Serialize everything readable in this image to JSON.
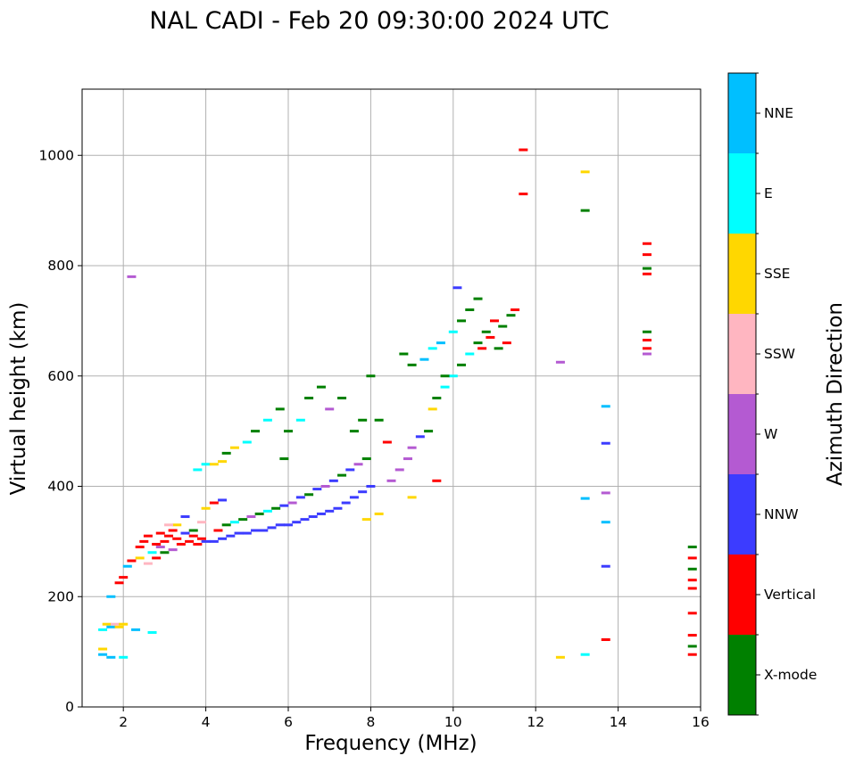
{
  "chart_data": {
    "type": "scatter",
    "title": "NAL CADI - Feb 20 09:30:00 2024 UTC",
    "xlabel": "Frequency (MHz)",
    "ylabel": "Virtual height (km)",
    "xlim": [
      1,
      16
    ],
    "ylim": [
      0,
      1120
    ],
    "xticks": [
      2,
      4,
      6,
      8,
      10,
      12,
      14,
      16
    ],
    "yticks": [
      0,
      200,
      400,
      600,
      800,
      1000
    ],
    "grid": true,
    "colorbar": {
      "label": "Azimuth Direction",
      "categories": [
        {
          "name": "X-mode",
          "color": "#008000"
        },
        {
          "name": "Vertical",
          "color": "#ff0000"
        },
        {
          "name": "NNW",
          "color": "#3c3cff"
        },
        {
          "name": "W",
          "color": "#b45ad2"
        },
        {
          "name": "SSW",
          "color": "#ffb6c1"
        },
        {
          "name": "SSE",
          "color": "#ffd700"
        },
        {
          "name": "E",
          "color": "#00ffff"
        },
        {
          "name": "NNE",
          "color": "#00bfff"
        }
      ]
    },
    "points": [
      [
        1.5,
        95,
        "NNE"
      ],
      [
        1.5,
        105,
        "SSE"
      ],
      [
        1.5,
        140,
        "E"
      ],
      [
        1.6,
        150,
        "SSE"
      ],
      [
        1.7,
        145,
        "NNE"
      ],
      [
        1.8,
        150,
        "SSW"
      ],
      [
        1.9,
        145,
        "SSE"
      ],
      [
        2.0,
        150,
        "SSE"
      ],
      [
        2.3,
        140,
        "NNE"
      ],
      [
        2.7,
        135,
        "E"
      ],
      [
        2.0,
        90,
        "E"
      ],
      [
        1.7,
        90,
        "NNE"
      ],
      [
        2.2,
        780,
        "W"
      ],
      [
        1.7,
        200,
        "NNE"
      ],
      [
        1.9,
        225,
        "Vertical"
      ],
      [
        2.0,
        235,
        "Vertical"
      ],
      [
        2.1,
        255,
        "NNE"
      ],
      [
        2.2,
        265,
        "Vertical"
      ],
      [
        2.4,
        270,
        "SSE"
      ],
      [
        2.4,
        290,
        "Vertical"
      ],
      [
        2.5,
        300,
        "Vertical"
      ],
      [
        2.6,
        310,
        "Vertical"
      ],
      [
        2.7,
        280,
        "E"
      ],
      [
        2.8,
        295,
        "Vertical"
      ],
      [
        2.9,
        290,
        "W"
      ],
      [
        3.0,
        300,
        "Vertical"
      ],
      [
        3.1,
        310,
        "Vertical"
      ],
      [
        3.2,
        320,
        "Vertical"
      ],
      [
        3.3,
        305,
        "Vertical"
      ],
      [
        3.4,
        295,
        "Vertical"
      ],
      [
        3.5,
        315,
        "NNW"
      ],
      [
        3.6,
        300,
        "Vertical"
      ],
      [
        3.7,
        310,
        "Vertical"
      ],
      [
        3.8,
        295,
        "Vertical"
      ],
      [
        3.9,
        305,
        "Vertical"
      ],
      [
        4.0,
        300,
        "NNW"
      ],
      [
        2.6,
        260,
        "SSW"
      ],
      [
        2.8,
        270,
        "Vertical"
      ],
      [
        3.0,
        280,
        "X-mode"
      ],
      [
        3.2,
        285,
        "W"
      ],
      [
        3.3,
        330,
        "SSE"
      ],
      [
        3.5,
        345,
        "NNW"
      ],
      [
        3.7,
        320,
        "X-mode"
      ],
      [
        3.9,
        335,
        "SSW"
      ],
      [
        2.9,
        315,
        "Vertical"
      ],
      [
        3.1,
        330,
        "SSW"
      ],
      [
        4.2,
        300,
        "NNW"
      ],
      [
        4.4,
        305,
        "NNW"
      ],
      [
        4.6,
        310,
        "NNW"
      ],
      [
        4.8,
        315,
        "NNW"
      ],
      [
        5.0,
        315,
        "NNW"
      ],
      [
        5.2,
        320,
        "NNW"
      ],
      [
        5.4,
        320,
        "NNW"
      ],
      [
        5.6,
        325,
        "NNW"
      ],
      [
        5.8,
        330,
        "NNW"
      ],
      [
        6.0,
        330,
        "NNW"
      ],
      [
        6.2,
        335,
        "NNW"
      ],
      [
        6.4,
        340,
        "NNW"
      ],
      [
        6.6,
        345,
        "NNW"
      ],
      [
        6.8,
        350,
        "NNW"
      ],
      [
        7.0,
        355,
        "NNW"
      ],
      [
        7.2,
        360,
        "NNW"
      ],
      [
        7.4,
        370,
        "NNW"
      ],
      [
        7.6,
        380,
        "NNW"
      ],
      [
        7.8,
        390,
        "NNW"
      ],
      [
        8.0,
        400,
        "NNW"
      ],
      [
        4.3,
        320,
        "Vertical"
      ],
      [
        4.5,
        330,
        "X-mode"
      ],
      [
        4.7,
        335,
        "E"
      ],
      [
        4.9,
        340,
        "X-mode"
      ],
      [
        5.1,
        345,
        "W"
      ],
      [
        5.3,
        350,
        "X-mode"
      ],
      [
        5.5,
        355,
        "E"
      ],
      [
        5.7,
        360,
        "X-mode"
      ],
      [
        5.9,
        365,
        "NNW"
      ],
      [
        6.1,
        370,
        "W"
      ],
      [
        6.3,
        380,
        "NNW"
      ],
      [
        6.5,
        385,
        "X-mode"
      ],
      [
        6.7,
        395,
        "NNW"
      ],
      [
        6.9,
        400,
        "W"
      ],
      [
        7.1,
        410,
        "NNW"
      ],
      [
        7.3,
        420,
        "X-mode"
      ],
      [
        7.5,
        430,
        "NNW"
      ],
      [
        7.7,
        440,
        "W"
      ],
      [
        7.9,
        450,
        "X-mode"
      ],
      [
        4.0,
        360,
        "SSE"
      ],
      [
        4.2,
        370,
        "Vertical"
      ],
      [
        4.4,
        375,
        "NNW"
      ],
      [
        3.8,
        430,
        "E"
      ],
      [
        4.0,
        440,
        "E"
      ],
      [
        4.2,
        440,
        "SSE"
      ],
      [
        4.4,
        445,
        "SSE"
      ],
      [
        4.5,
        460,
        "X-mode"
      ],
      [
        4.7,
        470,
        "SSE"
      ],
      [
        5.0,
        480,
        "E"
      ],
      [
        5.2,
        500,
        "X-mode"
      ],
      [
        5.5,
        520,
        "E"
      ],
      [
        5.8,
        540,
        "X-mode"
      ],
      [
        6.0,
        500,
        "X-mode"
      ],
      [
        6.3,
        520,
        "E"
      ],
      [
        6.5,
        560,
        "X-mode"
      ],
      [
        6.8,
        580,
        "X-mode"
      ],
      [
        7.0,
        540,
        "W"
      ],
      [
        7.3,
        560,
        "X-mode"
      ],
      [
        7.6,
        500,
        "X-mode"
      ],
      [
        7.8,
        520,
        "X-mode"
      ],
      [
        5.9,
        450,
        "X-mode"
      ],
      [
        8.2,
        520,
        "X-mode"
      ],
      [
        8.4,
        480,
        "Vertical"
      ],
      [
        8.5,
        410,
        "W"
      ],
      [
        8.7,
        430,
        "W"
      ],
      [
        8.9,
        450,
        "W"
      ],
      [
        9.0,
        470,
        "W"
      ],
      [
        9.2,
        490,
        "NNW"
      ],
      [
        9.4,
        500,
        "X-mode"
      ],
      [
        9.5,
        540,
        "SSE"
      ],
      [
        9.6,
        560,
        "X-mode"
      ],
      [
        9.8,
        580,
        "E"
      ],
      [
        10.0,
        600,
        "E"
      ],
      [
        10.2,
        620,
        "X-mode"
      ],
      [
        10.4,
        640,
        "E"
      ],
      [
        10.6,
        660,
        "X-mode"
      ],
      [
        10.8,
        680,
        "X-mode"
      ],
      [
        11.0,
        700,
        "Vertical"
      ],
      [
        11.2,
        690,
        "X-mode"
      ],
      [
        11.4,
        710,
        "X-mode"
      ],
      [
        11.5,
        720,
        "Vertical"
      ],
      [
        8.8,
        640,
        "X-mode"
      ],
      [
        9.0,
        620,
        "X-mode"
      ],
      [
        9.3,
        630,
        "NNE"
      ],
      [
        9.5,
        650,
        "E"
      ],
      [
        9.7,
        660,
        "NNE"
      ],
      [
        10.0,
        680,
        "E"
      ],
      [
        10.2,
        700,
        "X-mode"
      ],
      [
        10.4,
        720,
        "X-mode"
      ],
      [
        10.1,
        760,
        "NNW"
      ],
      [
        10.6,
        740,
        "X-mode"
      ],
      [
        9.0,
        380,
        "SSE"
      ],
      [
        9.6,
        410,
        "Vertical"
      ],
      [
        8.2,
        350,
        "SSE"
      ],
      [
        7.9,
        340,
        "SSE"
      ],
      [
        9.8,
        600,
        "X-mode"
      ],
      [
        10.7,
        650,
        "Vertical"
      ],
      [
        10.9,
        670,
        "Vertical"
      ],
      [
        11.1,
        650,
        "X-mode"
      ],
      [
        11.3,
        660,
        "Vertical"
      ],
      [
        8.0,
        600,
        "X-mode"
      ],
      [
        11.7,
        1010,
        "Vertical"
      ],
      [
        11.7,
        930,
        "Vertical"
      ],
      [
        12.6,
        625,
        "W"
      ],
      [
        12.6,
        90,
        "SSE"
      ],
      [
        13.2,
        970,
        "SSE"
      ],
      [
        13.2,
        900,
        "X-mode"
      ],
      [
        13.2,
        95,
        "E"
      ],
      [
        13.7,
        545,
        "NNE"
      ],
      [
        13.7,
        478,
        "NNW"
      ],
      [
        13.7,
        388,
        "W"
      ],
      [
        13.7,
        335,
        "NNE"
      ],
      [
        13.7,
        255,
        "NNW"
      ],
      [
        13.7,
        122,
        "Vertical"
      ],
      [
        13.2,
        378,
        "NNE"
      ],
      [
        14.7,
        840,
        "Vertical"
      ],
      [
        14.7,
        820,
        "Vertical"
      ],
      [
        14.7,
        795,
        "X-mode"
      ],
      [
        14.7,
        785,
        "Vertical"
      ],
      [
        14.7,
        680,
        "X-mode"
      ],
      [
        14.7,
        665,
        "Vertical"
      ],
      [
        14.7,
        650,
        "Vertical"
      ],
      [
        14.7,
        640,
        "W"
      ],
      [
        15.8,
        290,
        "X-mode"
      ],
      [
        15.8,
        270,
        "Vertical"
      ],
      [
        15.8,
        250,
        "X-mode"
      ],
      [
        15.8,
        230,
        "Vertical"
      ],
      [
        15.8,
        215,
        "Vertical"
      ],
      [
        15.8,
        170,
        "Vertical"
      ],
      [
        15.8,
        130,
        "Vertical"
      ],
      [
        15.8,
        110,
        "X-mode"
      ],
      [
        15.8,
        95,
        "Vertical"
      ]
    ]
  }
}
